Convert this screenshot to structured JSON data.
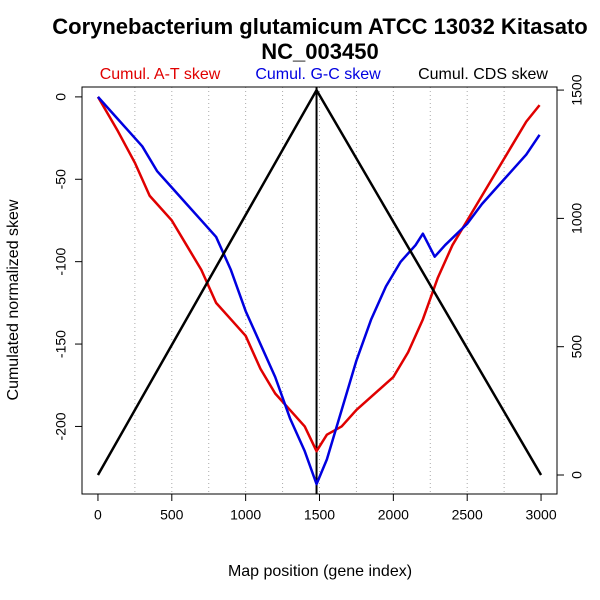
{
  "chart_data": {
    "type": "line",
    "title": "Corynebacterium glutamicum ATCC 13032 Kitasato",
    "subtitle": "NC_003450",
    "x_label": "Map position (gene index)",
    "y_label": "Cumulated normalized skew",
    "xlim": [
      -108,
      3108
    ],
    "xticks": [
      0,
      500,
      1000,
      1500,
      2000,
      2500,
      3000
    ],
    "ylim": [
      -241,
      6
    ],
    "yticks": [
      0,
      -50,
      -100,
      -150,
      -200
    ],
    "y2lim": [
      -74,
      1512
    ],
    "y2ticks": [
      0,
      500,
      1000,
      1500
    ],
    "vgrid": [
      250,
      500,
      750,
      1000,
      1250,
      1500,
      1750,
      2000,
      2250,
      2500,
      2750
    ],
    "vline": 1480,
    "series": [
      {
        "name": "Cumul. A-T skew",
        "color": "#e00000",
        "x": [
          0,
          130,
          250,
          350,
          500,
          600,
          700,
          800,
          900,
          1000,
          1100,
          1200,
          1300,
          1400,
          1480,
          1550,
          1650,
          1750,
          1900,
          2000,
          2100,
          2200,
          2300,
          2400,
          2500,
          2600,
          2700,
          2800,
          2900,
          2990
        ],
        "values": [
          0,
          -20,
          -40,
          -60,
          -75,
          -90,
          -105,
          -125,
          -135,
          -145,
          -165,
          -180,
          -190,
          -200,
          -215,
          -205,
          -200,
          -190,
          -178,
          -170,
          -155,
          -135,
          -110,
          -90,
          -75,
          -60,
          -45,
          -30,
          -15,
          -5
        ]
      },
      {
        "name": "Cumul. G-C skew",
        "color": "#0000e0",
        "x": [
          0,
          100,
          200,
          300,
          400,
          500,
          600,
          700,
          800,
          900,
          1000,
          1100,
          1200,
          1300,
          1400,
          1480,
          1550,
          1650,
          1750,
          1850,
          1950,
          2050,
          2150,
          2200,
          2280,
          2350,
          2500,
          2600,
          2700,
          2800,
          2900,
          2990
        ],
        "values": [
          0,
          -10,
          -20,
          -30,
          -45,
          -55,
          -65,
          -75,
          -85,
          -105,
          -130,
          -150,
          -170,
          -195,
          -215,
          -235,
          -220,
          -190,
          -160,
          -135,
          -115,
          -100,
          -90,
          -83,
          -97,
          -90,
          -77,
          -65,
          -55,
          -45,
          -35,
          -23
        ]
      },
      {
        "name": "Cumul. CDS skew",
        "color": "#000000",
        "axis": "y2",
        "x": [
          0,
          1480,
          3000
        ],
        "values": [
          0,
          1500,
          0
        ]
      }
    ]
  }
}
